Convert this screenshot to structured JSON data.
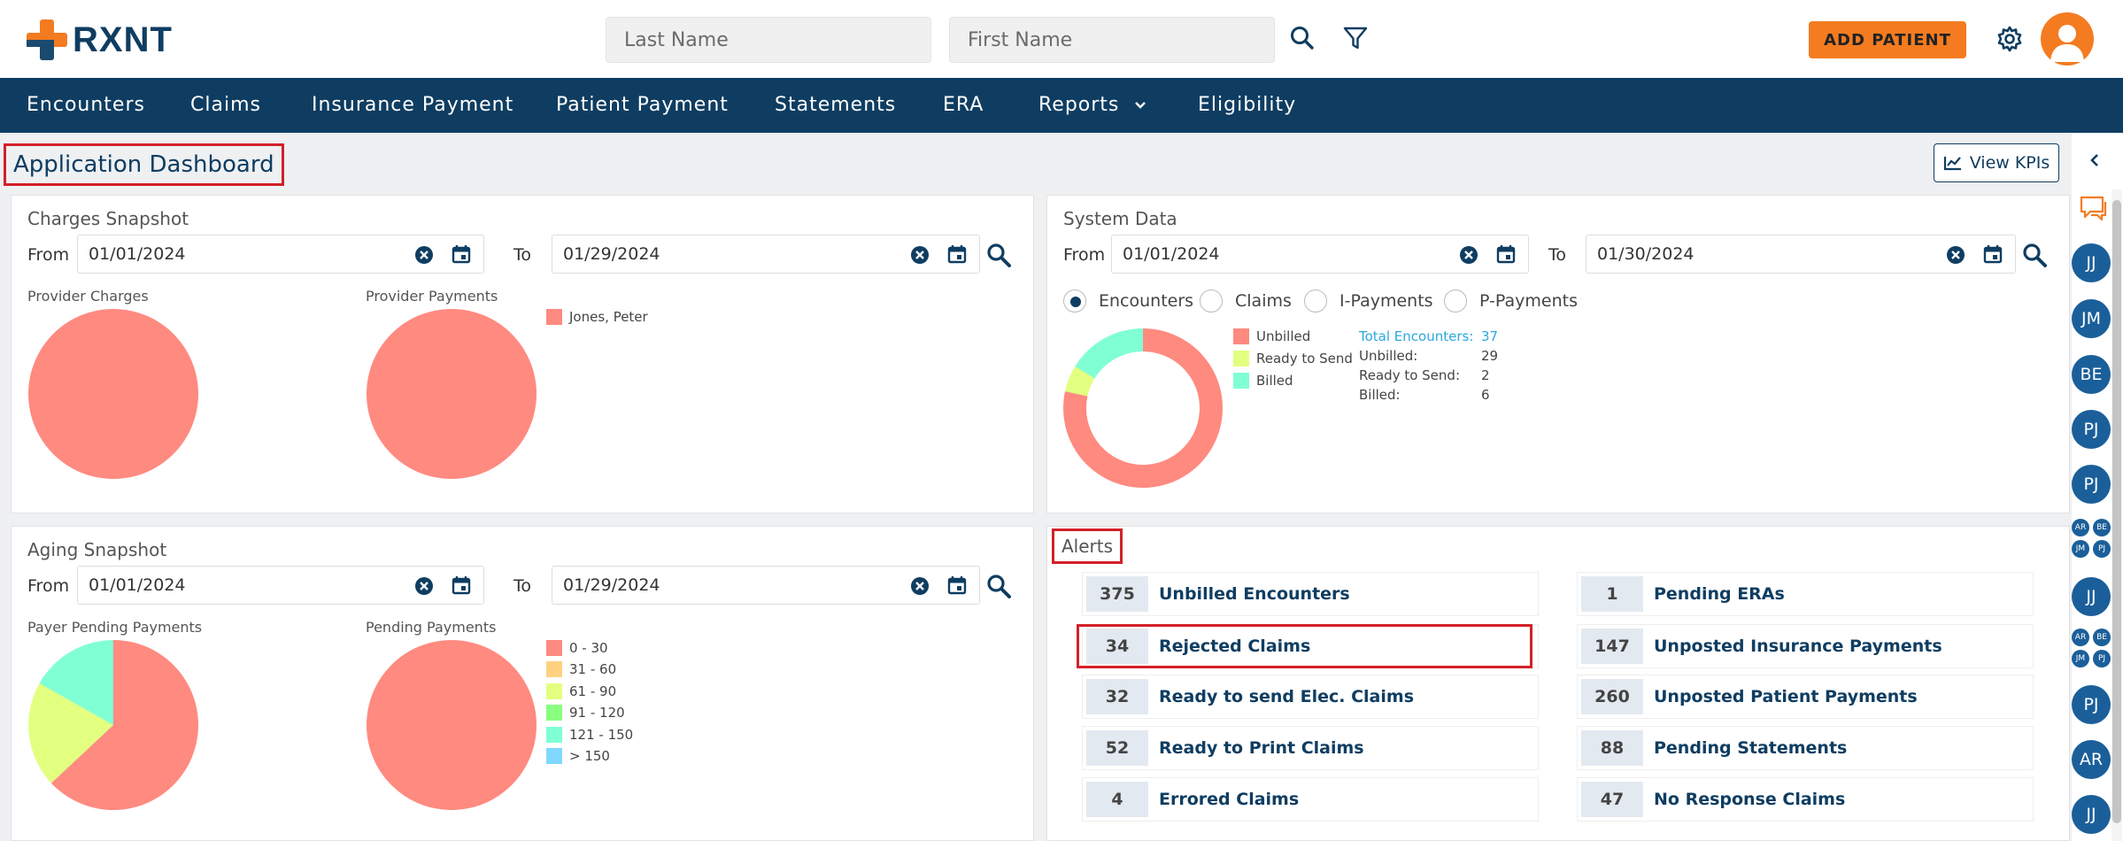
{
  "header": {
    "logo_text": "RXNT",
    "last_name_placeholder": "Last Name",
    "first_name_placeholder": "First Name",
    "add_patient_label": "ADD PATIENT"
  },
  "nav": {
    "items": [
      {
        "label": "Encounters"
      },
      {
        "label": "Claims"
      },
      {
        "label": "Insurance Payment"
      },
      {
        "label": "Patient Payment"
      },
      {
        "label": "Statements"
      },
      {
        "label": "ERA"
      },
      {
        "label": "Reports"
      },
      {
        "label": "Eligibility"
      }
    ]
  },
  "page": {
    "title": "Application Dashboard",
    "view_kpis_label": "View KPIs"
  },
  "charges": {
    "title": "Charges Snapshot",
    "from_label": "From",
    "to_label": "To",
    "from_date": "01/01/2024",
    "to_date": "01/29/2024",
    "provider_charges_label": "Provider Charges",
    "provider_payments_label": "Provider Payments",
    "legend": [
      {
        "label": "Jones, Peter",
        "color": "#ff8a80"
      }
    ]
  },
  "system": {
    "title": "System Data",
    "from_label": "From",
    "to_label": "To",
    "from_date": "01/01/2024",
    "to_date": "01/30/2024",
    "radios": [
      "Encounters",
      "Claims",
      "I-Payments",
      "P-Payments"
    ],
    "selected_radio": "Encounters",
    "legend": [
      {
        "label": "Unbilled",
        "color": "#ff8a80"
      },
      {
        "label": "Ready to Send",
        "color": "#e2ff80"
      },
      {
        "label": "Billed",
        "color": "#80ffd4"
      }
    ],
    "stats": {
      "total_label": "Total Encounters:",
      "total_value": "37",
      "unbilled_label": "Unbilled:",
      "unbilled_value": "29",
      "ready_label": "Ready to Send:",
      "ready_value": "2",
      "billed_label": "Billed:",
      "billed_value": "6"
    }
  },
  "aging": {
    "title": "Aging Snapshot",
    "from_label": "From",
    "to_label": "To",
    "from_date": "01/01/2024",
    "to_date": "01/29/2024",
    "payer_pending_label": "Payer Pending Payments",
    "pending_label": "Pending Payments",
    "legend": [
      {
        "label": "0 - 30",
        "color": "#ff8a80"
      },
      {
        "label": "31 - 60",
        "color": "#ffd180"
      },
      {
        "label": "61 - 90",
        "color": "#e2ff80"
      },
      {
        "label": "91 - 120",
        "color": "#8aff80"
      },
      {
        "label": "121 - 150",
        "color": "#80ffd4"
      },
      {
        "label": "> 150",
        "color": "#80d8ff"
      }
    ]
  },
  "alerts": {
    "title": "Alerts",
    "left": [
      {
        "count": "375",
        "label": "Unbilled Encounters"
      },
      {
        "count": "34",
        "label": "Rejected Claims"
      },
      {
        "count": "32",
        "label": "Ready to send Elec. Claims"
      },
      {
        "count": "52",
        "label": "Ready to Print Claims"
      },
      {
        "count": "4",
        "label": "Errored Claims"
      }
    ],
    "right": [
      {
        "count": "1",
        "label": "Pending ERAs"
      },
      {
        "count": "147",
        "label": "Unposted Insurance Payments"
      },
      {
        "count": "260",
        "label": "Unposted Patient Payments"
      },
      {
        "count": "88",
        "label": "Pending Statements"
      },
      {
        "count": "47",
        "label": "No Response Claims"
      }
    ]
  },
  "rail": {
    "avatars": [
      "JJ",
      "JM",
      "BE",
      "PJ",
      "PJ",
      "JJ",
      "PJ",
      "AR",
      "JJ"
    ],
    "group_avatars": [
      "AR",
      "BE",
      "JM",
      "PJ"
    ]
  },
  "colors": {
    "brand_navy": "#0f3d61",
    "brand_orange": "#f47b20",
    "highlight_red": "#d32027"
  }
}
